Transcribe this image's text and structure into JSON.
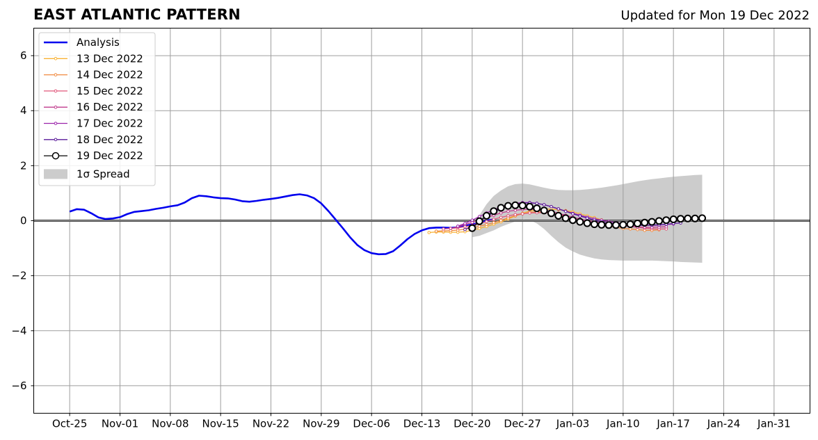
{
  "chart_data": {
    "type": "line",
    "title": "EAST ATLANTIC PATTERN",
    "subtitle": "Updated for Mon 19 Dec 2022",
    "xlabel": "",
    "ylabel": "",
    "ylim": [
      -7,
      7
    ],
    "yticks": [
      -6,
      -4,
      -2,
      0,
      2,
      4,
      6
    ],
    "yticklabels": [
      "−6",
      "−4",
      "−2",
      "0",
      "2",
      "4",
      "6"
    ],
    "xlim": [
      "2022-10-20",
      "2023-02-05"
    ],
    "xticks": [
      "2022-10-25",
      "2022-11-01",
      "2022-11-08",
      "2022-11-15",
      "2022-11-22",
      "2022-11-29",
      "2022-12-06",
      "2022-12-13",
      "2022-12-20",
      "2022-12-27",
      "2023-01-03",
      "2023-01-10",
      "2023-01-17",
      "2023-01-24",
      "2023-01-31"
    ],
    "xticklabels": [
      "Oct-25",
      "Nov-01",
      "Nov-08",
      "Nov-15",
      "Nov-22",
      "Nov-29",
      "Dec-06",
      "Dec-13",
      "Dec-20",
      "Dec-27",
      "Jan-03",
      "Jan-10",
      "Jan-17",
      "Jan-24",
      "Jan-31"
    ],
    "grid": true,
    "legend_position": "top-left",
    "series": [
      {
        "name": "Analysis",
        "color": "#0000ee",
        "style": "thick-line",
        "start": "2022-10-25",
        "values": [
          0.33,
          0.42,
          0.4,
          0.27,
          0.12,
          0.06,
          0.08,
          0.13,
          0.24,
          0.32,
          0.35,
          0.38,
          0.43,
          0.47,
          0.52,
          0.56,
          0.66,
          0.82,
          0.91,
          0.89,
          0.85,
          0.82,
          0.81,
          0.77,
          0.71,
          0.69,
          0.72,
          0.76,
          0.79,
          0.83,
          0.88,
          0.93,
          0.96,
          0.92,
          0.82,
          0.63,
          0.35,
          0.04,
          -0.27,
          -0.6,
          -0.88,
          -1.07,
          -1.18,
          -1.22,
          -1.21,
          -1.11,
          -0.9,
          -0.67,
          -0.48,
          -0.35,
          -0.27,
          -0.25,
          -0.25,
          -0.26,
          -0.24,
          -0.19,
          -0.13,
          -0.08,
          0.0,
          0.05
        ]
      },
      {
        "name": "13 Dec 2022",
        "color": "#f9b233",
        "style": "small-markers",
        "start": "2022-12-14",
        "values": [
          -0.43,
          -0.41,
          -0.41,
          -0.42,
          -0.42,
          -0.4,
          -0.35,
          -0.28,
          -0.21,
          -0.13,
          -0.04,
          0.06,
          0.17,
          0.27,
          0.35,
          0.4,
          0.42,
          0.42,
          0.4,
          0.37,
          0.32,
          0.25,
          0.18,
          0.11,
          0.03
        ]
      },
      {
        "name": "14 Dec 2022",
        "color": "#f08a40",
        "style": "small-markers",
        "start": "2022-12-15",
        "values": [
          -0.38,
          -0.37,
          -0.36,
          -0.34,
          -0.31,
          -0.26,
          -0.2,
          -0.14,
          -0.07,
          0.01,
          0.1,
          0.18,
          0.25,
          0.3,
          0.32,
          0.31,
          0.27,
          0.21,
          0.14,
          0.07,
          0.0,
          -0.06,
          -0.11,
          -0.16,
          -0.2,
          -0.24,
          -0.28,
          -0.3,
          -0.32,
          -0.35,
          -0.35,
          -0.33
        ]
      },
      {
        "name": "15 Dec 2022",
        "color": "#e0567a",
        "style": "small-markers",
        "start": "2022-12-16",
        "values": [
          -0.3,
          -0.28,
          -0.26,
          -0.22,
          -0.17,
          -0.11,
          -0.03,
          0.05,
          0.12,
          0.18,
          0.22,
          0.25,
          0.28,
          0.29,
          0.29,
          0.27,
          0.23,
          0.18,
          0.12,
          0.06,
          0.01,
          -0.04,
          -0.08,
          -0.12,
          -0.15,
          -0.18,
          -0.21,
          -0.24,
          -0.27,
          -0.29,
          -0.3,
          -0.3
        ]
      },
      {
        "name": "16 Dec 2022",
        "color": "#c03a8c",
        "style": "small-markers",
        "start": "2022-12-17",
        "values": [
          -0.28,
          -0.22,
          -0.14,
          -0.06,
          0.03,
          0.12,
          0.2,
          0.28,
          0.34,
          0.38,
          0.41,
          0.42,
          0.41,
          0.38,
          0.33,
          0.27,
          0.2,
          0.13,
          0.06,
          0.0,
          -0.05,
          -0.09,
          -0.13,
          -0.16,
          -0.19,
          -0.21,
          -0.23,
          -0.24,
          -0.24,
          -0.23,
          -0.22
        ]
      },
      {
        "name": "17 Dec 2022",
        "color": "#9a22aa",
        "style": "small-markers",
        "start": "2022-12-18",
        "values": [
          -0.2,
          -0.1,
          0.02,
          0.15,
          0.28,
          0.4,
          0.5,
          0.58,
          0.63,
          0.66,
          0.66,
          0.63,
          0.58,
          0.51,
          0.43,
          0.35,
          0.27,
          0.2,
          0.13,
          0.07,
          0.02,
          -0.03,
          -0.07,
          -0.1,
          -0.13,
          -0.15,
          -0.16,
          -0.17,
          -0.16,
          -0.14,
          -0.12
        ]
      },
      {
        "name": "18 Dec 2022",
        "color": "#5a1a9a",
        "style": "small-markers",
        "start": "2022-12-19",
        "values": [
          -0.32,
          -0.18,
          -0.02,
          0.15,
          0.3,
          0.43,
          0.53,
          0.6,
          0.64,
          0.65,
          0.63,
          0.58,
          0.51,
          0.43,
          0.34,
          0.25,
          0.17,
          0.09,
          0.02,
          -0.04,
          -0.09,
          -0.12,
          -0.15,
          -0.16,
          -0.17,
          -0.17,
          -0.16,
          -0.15,
          -0.13,
          -0.1,
          -0.08
        ]
      },
      {
        "name": "19 Dec 2022",
        "color": "#000000",
        "style": "open-circles",
        "start": "2022-12-20",
        "values": [
          -0.27,
          -0.02,
          0.18,
          0.35,
          0.47,
          0.54,
          0.56,
          0.55,
          0.51,
          0.45,
          0.37,
          0.27,
          0.18,
          0.09,
          0.02,
          -0.04,
          -0.09,
          -0.13,
          -0.15,
          -0.16,
          -0.16,
          -0.15,
          -0.13,
          -0.1,
          -0.07,
          -0.04,
          -0.01,
          0.02,
          0.05,
          0.07,
          0.08,
          0.08,
          0.09
        ]
      },
      {
        "name": "1σ Spread",
        "color": "#cccccc",
        "style": "band",
        "start": "2022-12-20",
        "upper": [
          -0.2,
          0.2,
          0.6,
          0.9,
          1.1,
          1.25,
          1.33,
          1.35,
          1.32,
          1.26,
          1.2,
          1.15,
          1.12,
          1.11,
          1.11,
          1.12,
          1.14,
          1.17,
          1.2,
          1.24,
          1.28,
          1.33,
          1.38,
          1.43,
          1.47,
          1.51,
          1.54,
          1.57,
          1.6,
          1.62,
          1.64,
          1.66,
          1.67
        ],
        "lower": [
          -0.6,
          -0.55,
          -0.45,
          -0.35,
          -0.22,
          -0.12,
          -0.03,
          0.05,
          0.02,
          -0.1,
          -0.3,
          -0.55,
          -0.78,
          -0.98,
          -1.12,
          -1.23,
          -1.31,
          -1.37,
          -1.41,
          -1.43,
          -1.44,
          -1.45,
          -1.45,
          -1.45,
          -1.45,
          -1.45,
          -1.46,
          -1.47,
          -1.48,
          -1.5,
          -1.51,
          -1.52,
          -1.53
        ]
      }
    ]
  }
}
